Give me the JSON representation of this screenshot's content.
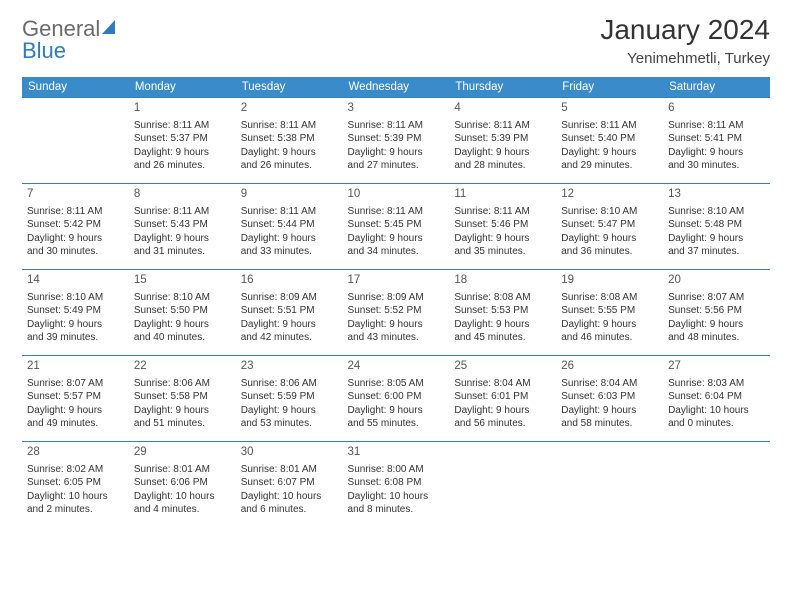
{
  "brand": {
    "line1": "General",
    "line2": "Blue"
  },
  "title": "January 2024",
  "subtitle": "Yenimehmetli, Turkey",
  "accent_color": "#3a8bc9",
  "border_color": "#3a7fb3",
  "dayHeaders": [
    "Sunday",
    "Monday",
    "Tuesday",
    "Wednesday",
    "Thursday",
    "Friday",
    "Saturday"
  ],
  "weeks": [
    [
      null,
      {
        "n": "1",
        "sr": "Sunrise: 8:11 AM",
        "ss": "Sunset: 5:37 PM",
        "d1": "Daylight: 9 hours",
        "d2": "and 26 minutes."
      },
      {
        "n": "2",
        "sr": "Sunrise: 8:11 AM",
        "ss": "Sunset: 5:38 PM",
        "d1": "Daylight: 9 hours",
        "d2": "and 26 minutes."
      },
      {
        "n": "3",
        "sr": "Sunrise: 8:11 AM",
        "ss": "Sunset: 5:39 PM",
        "d1": "Daylight: 9 hours",
        "d2": "and 27 minutes."
      },
      {
        "n": "4",
        "sr": "Sunrise: 8:11 AM",
        "ss": "Sunset: 5:39 PM",
        "d1": "Daylight: 9 hours",
        "d2": "and 28 minutes."
      },
      {
        "n": "5",
        "sr": "Sunrise: 8:11 AM",
        "ss": "Sunset: 5:40 PM",
        "d1": "Daylight: 9 hours",
        "d2": "and 29 minutes."
      },
      {
        "n": "6",
        "sr": "Sunrise: 8:11 AM",
        "ss": "Sunset: 5:41 PM",
        "d1": "Daylight: 9 hours",
        "d2": "and 30 minutes."
      }
    ],
    [
      {
        "n": "7",
        "sr": "Sunrise: 8:11 AM",
        "ss": "Sunset: 5:42 PM",
        "d1": "Daylight: 9 hours",
        "d2": "and 30 minutes."
      },
      {
        "n": "8",
        "sr": "Sunrise: 8:11 AM",
        "ss": "Sunset: 5:43 PM",
        "d1": "Daylight: 9 hours",
        "d2": "and 31 minutes."
      },
      {
        "n": "9",
        "sr": "Sunrise: 8:11 AM",
        "ss": "Sunset: 5:44 PM",
        "d1": "Daylight: 9 hours",
        "d2": "and 33 minutes."
      },
      {
        "n": "10",
        "sr": "Sunrise: 8:11 AM",
        "ss": "Sunset: 5:45 PM",
        "d1": "Daylight: 9 hours",
        "d2": "and 34 minutes."
      },
      {
        "n": "11",
        "sr": "Sunrise: 8:11 AM",
        "ss": "Sunset: 5:46 PM",
        "d1": "Daylight: 9 hours",
        "d2": "and 35 minutes."
      },
      {
        "n": "12",
        "sr": "Sunrise: 8:10 AM",
        "ss": "Sunset: 5:47 PM",
        "d1": "Daylight: 9 hours",
        "d2": "and 36 minutes."
      },
      {
        "n": "13",
        "sr": "Sunrise: 8:10 AM",
        "ss": "Sunset: 5:48 PM",
        "d1": "Daylight: 9 hours",
        "d2": "and 37 minutes."
      }
    ],
    [
      {
        "n": "14",
        "sr": "Sunrise: 8:10 AM",
        "ss": "Sunset: 5:49 PM",
        "d1": "Daylight: 9 hours",
        "d2": "and 39 minutes."
      },
      {
        "n": "15",
        "sr": "Sunrise: 8:10 AM",
        "ss": "Sunset: 5:50 PM",
        "d1": "Daylight: 9 hours",
        "d2": "and 40 minutes."
      },
      {
        "n": "16",
        "sr": "Sunrise: 8:09 AM",
        "ss": "Sunset: 5:51 PM",
        "d1": "Daylight: 9 hours",
        "d2": "and 42 minutes."
      },
      {
        "n": "17",
        "sr": "Sunrise: 8:09 AM",
        "ss": "Sunset: 5:52 PM",
        "d1": "Daylight: 9 hours",
        "d2": "and 43 minutes."
      },
      {
        "n": "18",
        "sr": "Sunrise: 8:08 AM",
        "ss": "Sunset: 5:53 PM",
        "d1": "Daylight: 9 hours",
        "d2": "and 45 minutes."
      },
      {
        "n": "19",
        "sr": "Sunrise: 8:08 AM",
        "ss": "Sunset: 5:55 PM",
        "d1": "Daylight: 9 hours",
        "d2": "and 46 minutes."
      },
      {
        "n": "20",
        "sr": "Sunrise: 8:07 AM",
        "ss": "Sunset: 5:56 PM",
        "d1": "Daylight: 9 hours",
        "d2": "and 48 minutes."
      }
    ],
    [
      {
        "n": "21",
        "sr": "Sunrise: 8:07 AM",
        "ss": "Sunset: 5:57 PM",
        "d1": "Daylight: 9 hours",
        "d2": "and 49 minutes."
      },
      {
        "n": "22",
        "sr": "Sunrise: 8:06 AM",
        "ss": "Sunset: 5:58 PM",
        "d1": "Daylight: 9 hours",
        "d2": "and 51 minutes."
      },
      {
        "n": "23",
        "sr": "Sunrise: 8:06 AM",
        "ss": "Sunset: 5:59 PM",
        "d1": "Daylight: 9 hours",
        "d2": "and 53 minutes."
      },
      {
        "n": "24",
        "sr": "Sunrise: 8:05 AM",
        "ss": "Sunset: 6:00 PM",
        "d1": "Daylight: 9 hours",
        "d2": "and 55 minutes."
      },
      {
        "n": "25",
        "sr": "Sunrise: 8:04 AM",
        "ss": "Sunset: 6:01 PM",
        "d1": "Daylight: 9 hours",
        "d2": "and 56 minutes."
      },
      {
        "n": "26",
        "sr": "Sunrise: 8:04 AM",
        "ss": "Sunset: 6:03 PM",
        "d1": "Daylight: 9 hours",
        "d2": "and 58 minutes."
      },
      {
        "n": "27",
        "sr": "Sunrise: 8:03 AM",
        "ss": "Sunset: 6:04 PM",
        "d1": "Daylight: 10 hours",
        "d2": "and 0 minutes."
      }
    ],
    [
      {
        "n": "28",
        "sr": "Sunrise: 8:02 AM",
        "ss": "Sunset: 6:05 PM",
        "d1": "Daylight: 10 hours",
        "d2": "and 2 minutes."
      },
      {
        "n": "29",
        "sr": "Sunrise: 8:01 AM",
        "ss": "Sunset: 6:06 PM",
        "d1": "Daylight: 10 hours",
        "d2": "and 4 minutes."
      },
      {
        "n": "30",
        "sr": "Sunrise: 8:01 AM",
        "ss": "Sunset: 6:07 PM",
        "d1": "Daylight: 10 hours",
        "d2": "and 6 minutes."
      },
      {
        "n": "31",
        "sr": "Sunrise: 8:00 AM",
        "ss": "Sunset: 6:08 PM",
        "d1": "Daylight: 10 hours",
        "d2": "and 8 minutes."
      },
      null,
      null,
      null
    ]
  ]
}
